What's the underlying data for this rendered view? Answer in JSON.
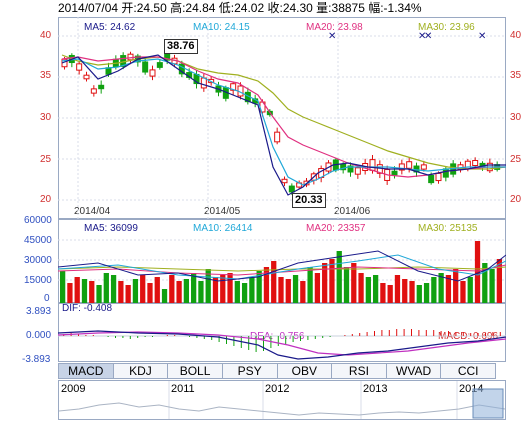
{
  "header": {
    "text": "2014/07/04 开:24.50 高:24.84 低:24.02 收:24.30 量:38875 幅:-1.34%"
  },
  "price_panel": {
    "ma5": "MA5: 24.62",
    "ma10": "MA10: 24.15",
    "ma20": "MA20: 23.98",
    "ma30": "MA30: 23.96",
    "y_ticks_left": [
      "40",
      "35",
      "30",
      "25",
      "20"
    ],
    "y_ticks_right": [
      "40",
      "35",
      "30",
      "25",
      "20"
    ],
    "x_labels": [
      "2014/04",
      "2014/05",
      "2014/06"
    ],
    "high_annotation": "38.76",
    "low_annotation": "20.33"
  },
  "volume_panel": {
    "ma5": "MA5: 36099",
    "ma10": "MA10: 26414",
    "ma20": "MA20: 23357",
    "ma30": "MA30: 25135",
    "y_ticks": [
      "60000",
      "45000",
      "30000",
      "15000",
      "0"
    ]
  },
  "macd_panel": {
    "dif": "DIF: -0.408",
    "dea": "DEA: -0.756",
    "macd": "MACD: 0.696",
    "y_ticks": [
      "3.893",
      "0.000",
      "-3.893"
    ]
  },
  "tabs": [
    "MACD",
    "KDJ",
    "BOLL",
    "PSY",
    "OBV",
    "RSI",
    "WVAD",
    "CCI"
  ],
  "timeline": {
    "years": [
      "2009",
      "2011",
      "2012",
      "2013",
      "2014"
    ]
  },
  "colors": {
    "up": "#e01010",
    "down": "#10a010",
    "ma5": "#1a1a8a",
    "ma10": "#20a8d8",
    "ma20": "#e03080",
    "ma30": "#a0b020"
  }
}
